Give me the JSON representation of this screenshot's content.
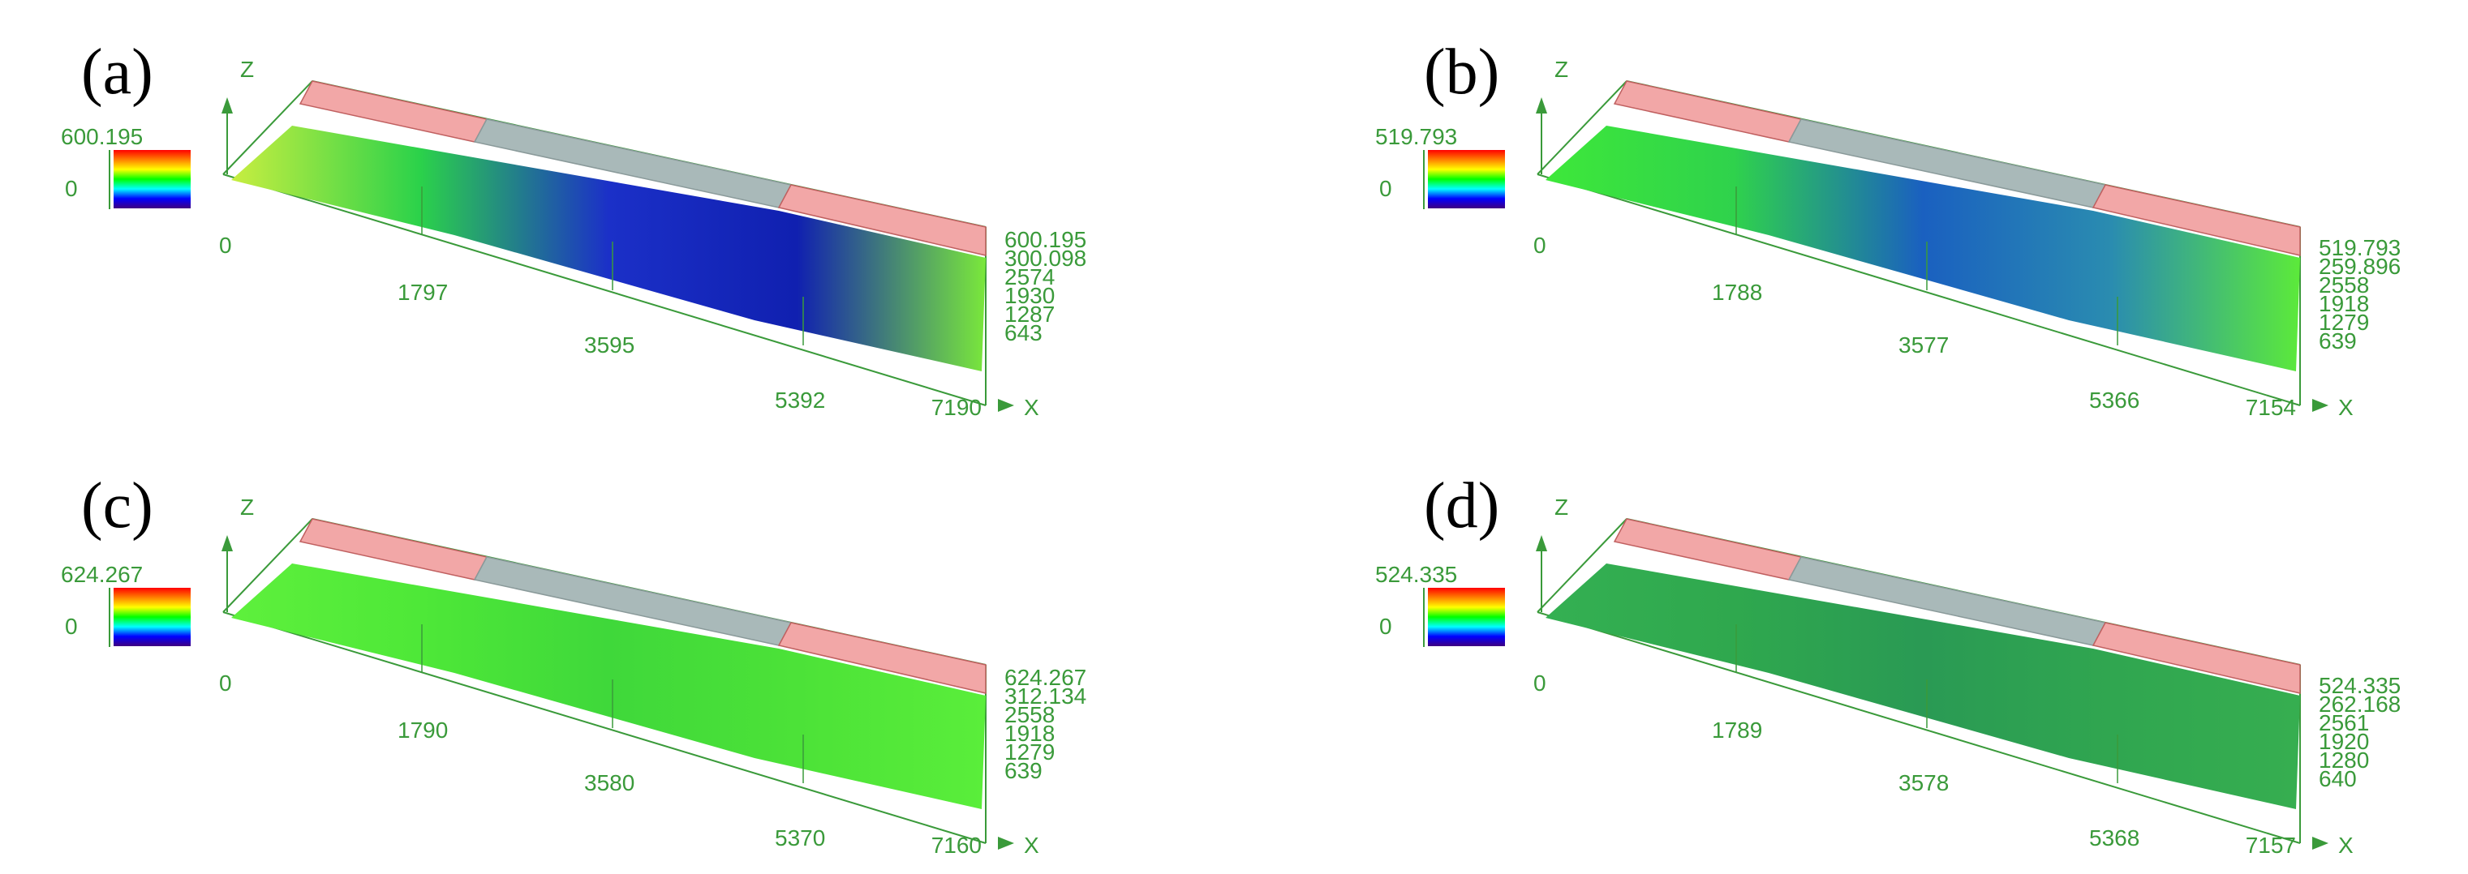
{
  "colors": {
    "axis_text": "#3a9a3a",
    "axis_line": "#3a9a3a",
    "panel_frame": "#c06060",
    "mask_pink": "#f2a7a7",
    "mask_gray": "#a9b9b9",
    "scale_spectrum": [
      "#ff0000",
      "#ff8000",
      "#ffff00",
      "#00ff00",
      "#00ffff",
      "#0000ff",
      "#400080"
    ]
  },
  "panels": [
    {
      "label": "(a)",
      "z_axis": "Z",
      "x_axis": "X",
      "scale_max": "600.195",
      "scale_min": "0",
      "origin": "0",
      "x_ticks": [
        "1797",
        "3595",
        "5392",
        "7190"
      ],
      "right_labels": [
        "600.195",
        "300.098",
        "2574",
        "1930",
        "1287",
        "643"
      ],
      "surface_colors": [
        "#c8ee40",
        "#2bd24a",
        "#1b30c8",
        "#1020b0",
        "#7ae83b"
      ]
    },
    {
      "label": "(b)",
      "z_axis": "Z",
      "x_axis": "X",
      "scale_max": "519.793",
      "scale_min": "0",
      "origin": "0",
      "x_ticks": [
        "1788",
        "3577",
        "5366",
        "7154"
      ],
      "right_labels": [
        "519.793",
        "259.896",
        "2558",
        "1918",
        "1279",
        "639"
      ],
      "surface_colors": [
        "#3ee83a",
        "#2fd24c",
        "#1a60c0",
        "#2a8cb0",
        "#5cea3a"
      ]
    },
    {
      "label": "(c)",
      "z_axis": "Z",
      "x_axis": "X",
      "scale_max": "624.267",
      "scale_min": "0",
      "origin": "0",
      "x_ticks": [
        "1790",
        "3580",
        "5370",
        "7160"
      ],
      "right_labels": [
        "624.267",
        "312.134",
        "2558",
        "1918",
        "1279",
        "639"
      ],
      "surface_colors": [
        "#5ef03c",
        "#4ee838",
        "#3fd83a",
        "#4ce238",
        "#5aee3a"
      ]
    },
    {
      "label": "(d)",
      "z_axis": "Z",
      "x_axis": "X",
      "scale_max": "524.335",
      "scale_min": "0",
      "origin": "0",
      "x_ticks": [
        "1789",
        "3578",
        "5368",
        "7157"
      ],
      "right_labels": [
        "524.335",
        "262.168",
        "2561",
        "1920",
        "1280",
        "640"
      ],
      "surface_colors": [
        "#34b052",
        "#2fa84e",
        "#2a9a54",
        "#30a650",
        "#36ae50"
      ]
    }
  ]
}
